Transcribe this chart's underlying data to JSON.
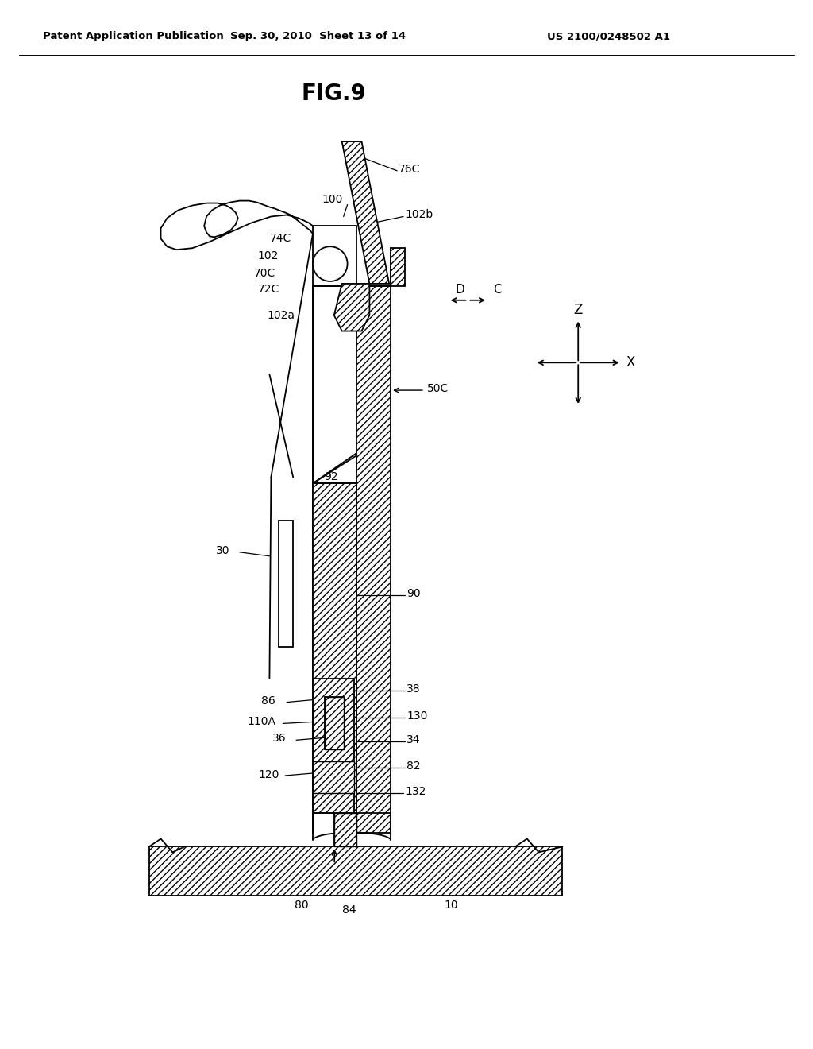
{
  "bg_color": "#ffffff",
  "header_left": "Patent Application Publication",
  "header_center": "Sep. 30, 2010  Sheet 13 of 14",
  "header_right": "US 2100/0248502 A1",
  "title": "FIG.9",
  "label_fs": 10,
  "title_fs": 20,
  "header_fs": 9.5
}
